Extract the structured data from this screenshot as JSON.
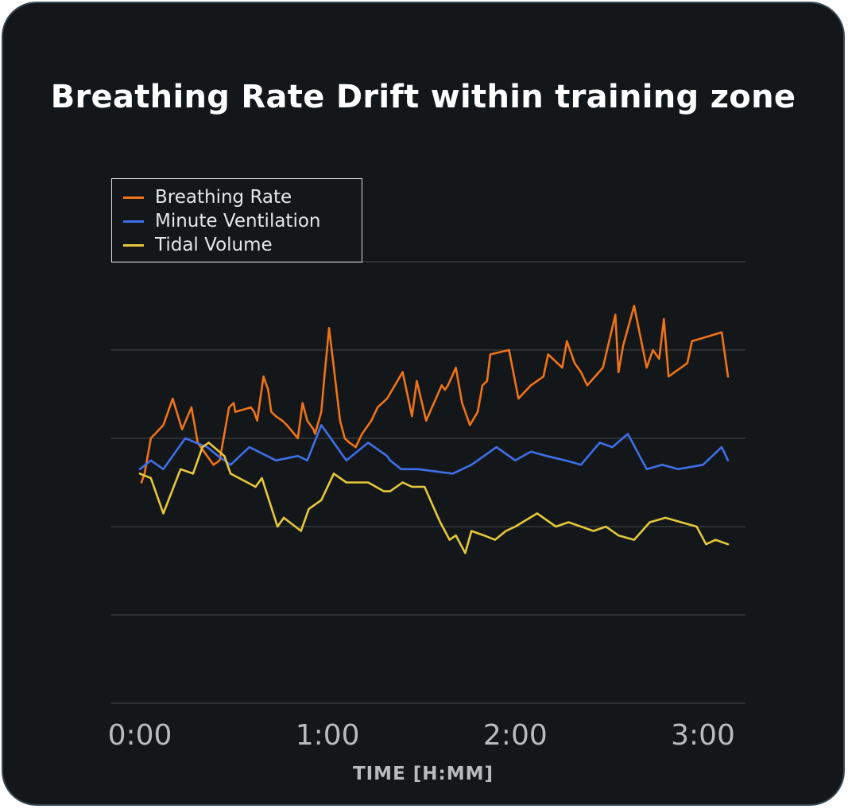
{
  "chart_data": {
    "type": "line",
    "title": "Breathing Rate Drift within training zone",
    "xlabel": "TIME [H:MM]",
    "ylabel": "",
    "x_tick_labels": [
      "0:00",
      "1:00",
      "2:00",
      "3:00"
    ],
    "x_ticks": [
      0,
      60,
      120,
      180
    ],
    "xlim": [
      0,
      188
    ],
    "ylim": [
      0,
      100
    ],
    "y_gridlines": [
      0,
      20,
      40,
      60,
      80,
      100
    ],
    "legend_position": "top-left",
    "series": [
      {
        "name": "Breathing Rate",
        "color": "#f07318",
        "x": [
          0.5,
          1.5,
          3.5,
          7.5,
          10.5,
          13.5,
          16.5,
          18.5,
          20.5,
          23.5,
          25.5,
          28.5,
          30,
          30.5,
          35.5,
          36.5,
          37.5,
          39.5,
          41,
          42,
          43.5,
          45.5,
          47,
          50.5,
          52,
          53.5,
          55.5,
          56,
          58,
          59,
          60.5,
          62.5,
          64,
          65.5,
          67,
          69,
          71,
          74,
          76,
          79,
          84,
          85.5,
          87,
          88.5,
          91.5,
          94,
          96.5,
          97.5,
          98.5,
          101,
          103,
          105.5,
          108,
          109.5,
          111,
          112,
          118,
          121,
          125,
          127,
          129,
          130.5,
          135,
          136.5,
          139,
          141,
          143,
          148,
          152,
          153,
          154.5,
          158,
          162,
          164,
          166,
          167.5,
          169,
          175,
          176.5,
          186,
          188
        ],
        "y": [
          50,
          52,
          60,
          63,
          69,
          62,
          67,
          59,
          57,
          54,
          55,
          67,
          68,
          66,
          67,
          66,
          64,
          74,
          71,
          66,
          65,
          64,
          63,
          60,
          68,
          64,
          62,
          61,
          66,
          74,
          85,
          73,
          64,
          60,
          59,
          58,
          61,
          64,
          67,
          69,
          75,
          70,
          65,
          73,
          64,
          68,
          72,
          71,
          72,
          76,
          68,
          63,
          66,
          72,
          73,
          79,
          80,
          69,
          72,
          73,
          74,
          79,
          76,
          82,
          77,
          75,
          72,
          76,
          88,
          75,
          81,
          90,
          76,
          80,
          78,
          87,
          74,
          77,
          82,
          84,
          74
        ]
      },
      {
        "name": "Minute Ventilation",
        "color": "#3f6fe8",
        "x": [
          0,
          3.5,
          7.5,
          14.5,
          21.5,
          25,
          29,
          35,
          43.5,
          50.5,
          53.5,
          58,
          66,
          73,
          79,
          80,
          83.5,
          89,
          100,
          106,
          114,
          120,
          125,
          130,
          136,
          141,
          147,
          151,
          156,
          162,
          167,
          172,
          180,
          186,
          188
        ],
        "y": [
          53,
          55,
          53,
          60,
          58,
          56,
          54,
          58,
          55,
          56,
          55,
          63,
          55,
          59,
          56,
          55,
          53,
          53,
          52,
          54,
          58,
          55,
          57,
          56,
          55,
          54,
          59,
          58,
          61,
          53,
          54,
          53,
          54,
          58,
          55
        ]
      },
      {
        "name": "Tidal Volume",
        "color": "#e6c83a",
        "x": [
          0,
          3.5,
          7.5,
          13,
          17,
          20,
          22,
          27,
          29,
          37,
          39,
          44,
          46,
          51.5,
          54,
          58,
          62,
          66,
          73,
          78,
          80,
          82,
          84,
          87,
          91,
          93.5,
          96,
          99,
          101,
          104,
          106,
          110,
          113.5,
          117,
          120,
          127,
          133,
          137,
          141,
          145,
          149,
          153,
          158,
          163,
          168,
          173,
          178,
          181,
          184,
          188
        ],
        "y": [
          52,
          51,
          43,
          53,
          52,
          58,
          59,
          56,
          52,
          49,
          51,
          40,
          42,
          39,
          44,
          46,
          52,
          50,
          50,
          48,
          48,
          49,
          50,
          49,
          49,
          45,
          41,
          37,
          38,
          34,
          39,
          38,
          37,
          39,
          40,
          43,
          40,
          41,
          40,
          39,
          40,
          38,
          37,
          41,
          42,
          41,
          40,
          36,
          37,
          36
        ]
      }
    ]
  }
}
